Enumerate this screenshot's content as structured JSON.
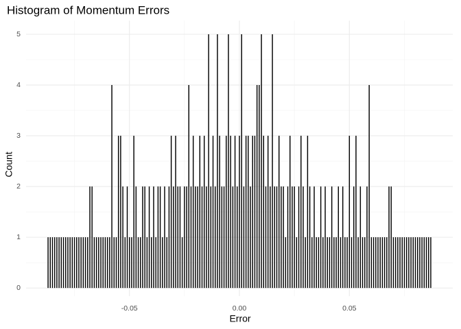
{
  "chart_data": {
    "type": "histogram",
    "title": "Histogram of Momentum Errors",
    "x_label": "Error",
    "y_label": "Count",
    "color": "#000000",
    "grid": true,
    "xlim": [
      -0.097,
      0.097
    ],
    "xticks": [
      -0.05,
      {
        "value": 0,
        "label": "0.00"
      },
      0.05
    ],
    "ylim": [
      -0.16,
      5.27
    ],
    "yticks": [
      0,
      1,
      2,
      3,
      4,
      5
    ],
    "bins": [
      -0.0875,
      -0.0865,
      -0.0855,
      -0.0845,
      -0.0835,
      -0.0825,
      -0.0815,
      -0.0805,
      -0.0795,
      -0.0785,
      -0.0775,
      -0.0765,
      -0.0755,
      -0.0745,
      -0.0735,
      -0.0725,
      -0.0715,
      -0.0705,
      -0.0695,
      -0.0685,
      -0.0675,
      -0.0665,
      -0.0655,
      -0.0645,
      -0.0635,
      -0.0625,
      -0.0615,
      -0.0605,
      -0.0595,
      -0.0585,
      -0.0575,
      -0.0565,
      -0.0555,
      -0.0545,
      -0.0535,
      -0.0525,
      -0.0515,
      -0.0505,
      -0.0495,
      -0.0485,
      -0.0475,
      -0.0465,
      -0.0455,
      -0.0445,
      -0.0435,
      -0.0425,
      -0.0415,
      -0.0405,
      -0.0395,
      -0.0385,
      -0.0375,
      -0.0365,
      -0.0355,
      -0.0345,
      -0.0335,
      -0.0325,
      -0.0315,
      -0.0305,
      -0.0295,
      -0.0285,
      -0.0275,
      -0.0265,
      -0.0255,
      -0.0245,
      -0.0235,
      -0.0225,
      -0.0215,
      -0.0205,
      -0.0195,
      -0.0185,
      -0.0175,
      -0.0165,
      -0.0155,
      -0.0145,
      -0.0135,
      -0.0125,
      -0.0115,
      -0.0105,
      -0.0095,
      -0.0085,
      -0.0075,
      -0.0065,
      -0.0055,
      -0.0045,
      -0.0035,
      -0.0025,
      -0.0015,
      -0.0005,
      0.0005,
      0.0015,
      0.0025,
      0.0035,
      0.0045,
      0.0055,
      0.0065,
      0.0075,
      0.0085,
      0.0095,
      0.0105,
      0.0115,
      0.0125,
      0.0135,
      0.0145,
      0.0155,
      0.0165,
      0.0175,
      0.0185,
      0.0195,
      0.0205,
      0.0215,
      0.0225,
      0.0235,
      0.0245,
      0.0255,
      0.0265,
      0.0275,
      0.0285,
      0.0295,
      0.0305,
      0.0315,
      0.0325,
      0.0335,
      0.0345,
      0.0355,
      0.0365,
      0.0375,
      0.0385,
      0.0395,
      0.0405,
      0.0415,
      0.0425,
      0.0435,
      0.0445,
      0.0455,
      0.0465,
      0.0475,
      0.0485,
      0.0495,
      0.0505,
      0.0515,
      0.0525,
      0.0535,
      0.0545,
      0.0555,
      0.0565,
      0.0575,
      0.0585,
      0.0595,
      0.0605,
      0.0615,
      0.0625,
      0.0635,
      0.0645,
      0.0655,
      0.0665,
      0.0675,
      0.0685,
      0.0695,
      0.0705,
      0.0715,
      0.0725,
      0.0735,
      0.0745,
      0.0755,
      0.0765,
      0.0775,
      0.0785,
      0.0795,
      0.0805,
      0.0815,
      0.0825,
      0.0835,
      0.0845,
      0.0855,
      0.0865,
      0.0875
    ],
    "values": [
      1,
      1,
      1,
      1,
      1,
      1,
      1,
      1,
      1,
      1,
      1,
      1,
      1,
      1,
      1,
      1,
      1,
      1,
      1,
      2,
      2,
      1,
      1,
      1,
      1,
      1,
      1,
      1,
      1,
      4,
      1,
      1,
      3,
      3,
      2,
      1,
      2,
      1,
      1,
      3,
      2,
      1,
      1,
      2,
      2,
      1,
      2,
      1,
      2,
      1,
      2,
      2,
      1,
      2,
      1,
      2,
      3,
      2,
      3,
      2,
      2,
      1,
      2,
      2,
      4,
      2,
      3,
      2,
      2,
      3,
      2,
      3,
      2,
      5,
      2,
      3,
      2,
      5,
      3,
      2,
      2,
      3,
      5,
      3,
      2,
      3,
      2,
      3,
      5,
      2,
      3,
      3,
      2,
      3,
      3,
      4,
      4,
      5,
      3,
      2,
      3,
      2,
      5,
      2,
      2,
      3,
      2,
      2,
      1,
      2,
      3,
      2,
      2,
      1,
      2,
      3,
      2,
      1,
      3,
      2,
      1,
      2,
      1,
      1,
      2,
      1,
      2,
      1,
      1,
      2,
      1,
      1,
      2,
      1,
      2,
      1,
      1,
      3,
      1,
      2,
      3,
      1,
      2,
      1,
      1,
      2,
      4,
      1,
      1,
      1,
      1,
      1,
      1,
      1,
      1,
      2,
      2,
      1,
      1,
      1,
      1,
      1,
      1,
      1,
      1,
      1,
      1,
      1,
      1,
      1,
      1,
      1,
      1,
      1,
      1
    ]
  }
}
